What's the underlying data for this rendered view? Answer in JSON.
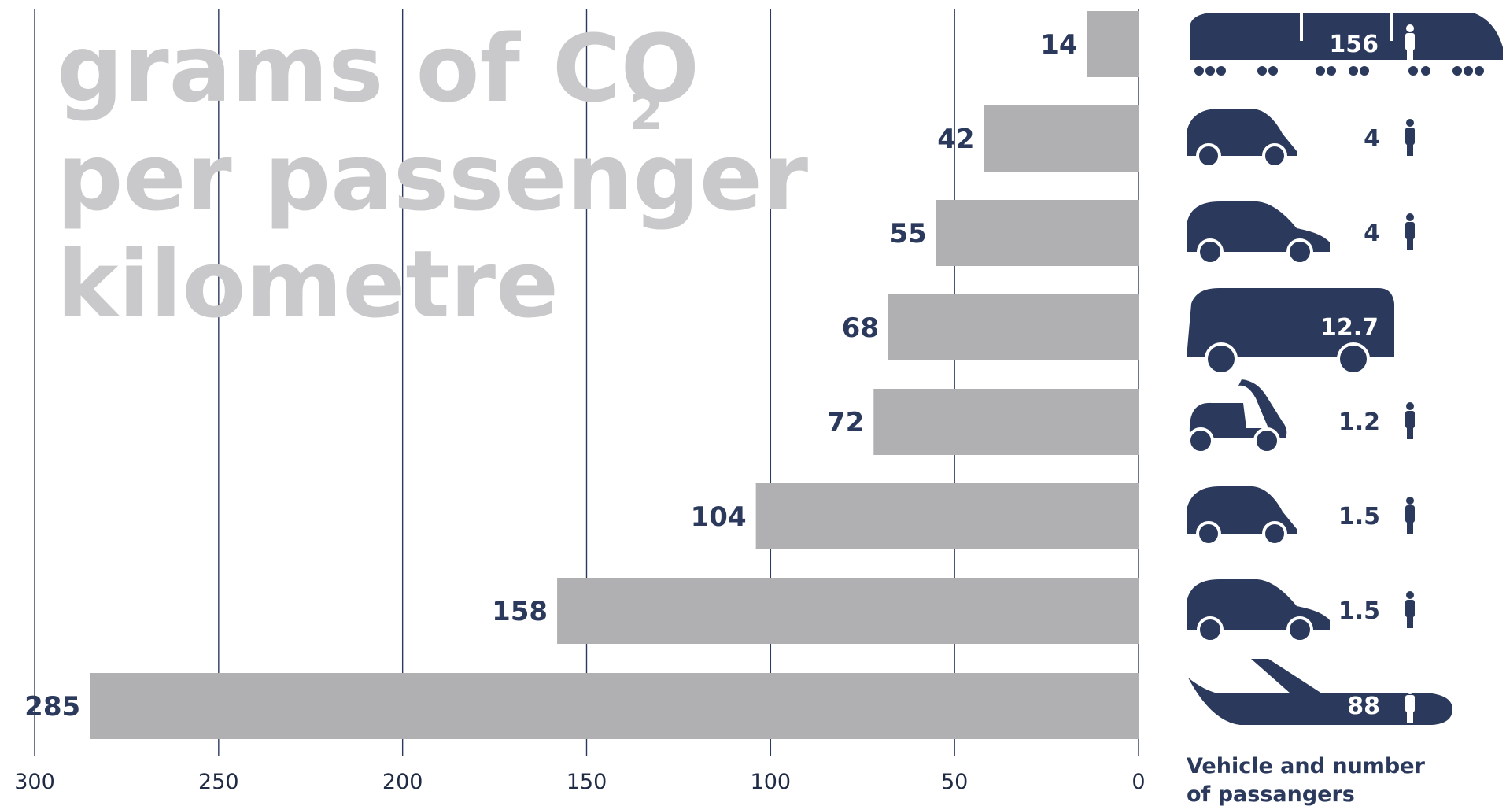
{
  "chart_data": {
    "type": "bar",
    "orientation": "horizontal",
    "title_lines": [
      "grams of CO",
      "per passenger",
      "kilometre"
    ],
    "title_subscript": "2",
    "xlim": [
      0,
      300
    ],
    "x_direction": "reversed",
    "x_ticks": [
      300,
      250,
      200,
      150,
      100,
      50,
      0
    ],
    "grid": true,
    "values": [
      14,
      42,
      55,
      68,
      72,
      104,
      158,
      285
    ],
    "vehicles": [
      {
        "icon": "train-icon",
        "passengers": "156"
      },
      {
        "icon": "small-car-icon",
        "passengers": "4"
      },
      {
        "icon": "car-icon",
        "passengers": "4"
      },
      {
        "icon": "van-icon",
        "passengers": "12.7"
      },
      {
        "icon": "scooter-icon",
        "passengers": "1.2"
      },
      {
        "icon": "small-car-icon",
        "passengers": "1.5"
      },
      {
        "icon": "car-icon",
        "passengers": "1.5"
      },
      {
        "icon": "airplane-icon",
        "passengers": "88"
      }
    ],
    "side_title": [
      "Vehicle and number",
      "of passangers"
    ],
    "colors": {
      "bar": "#b0b0b3",
      "grid": "#2b3a5c",
      "label": "#2b3a5c",
      "title": "#c9c9cb",
      "icon": "#2b3a5c"
    }
  }
}
